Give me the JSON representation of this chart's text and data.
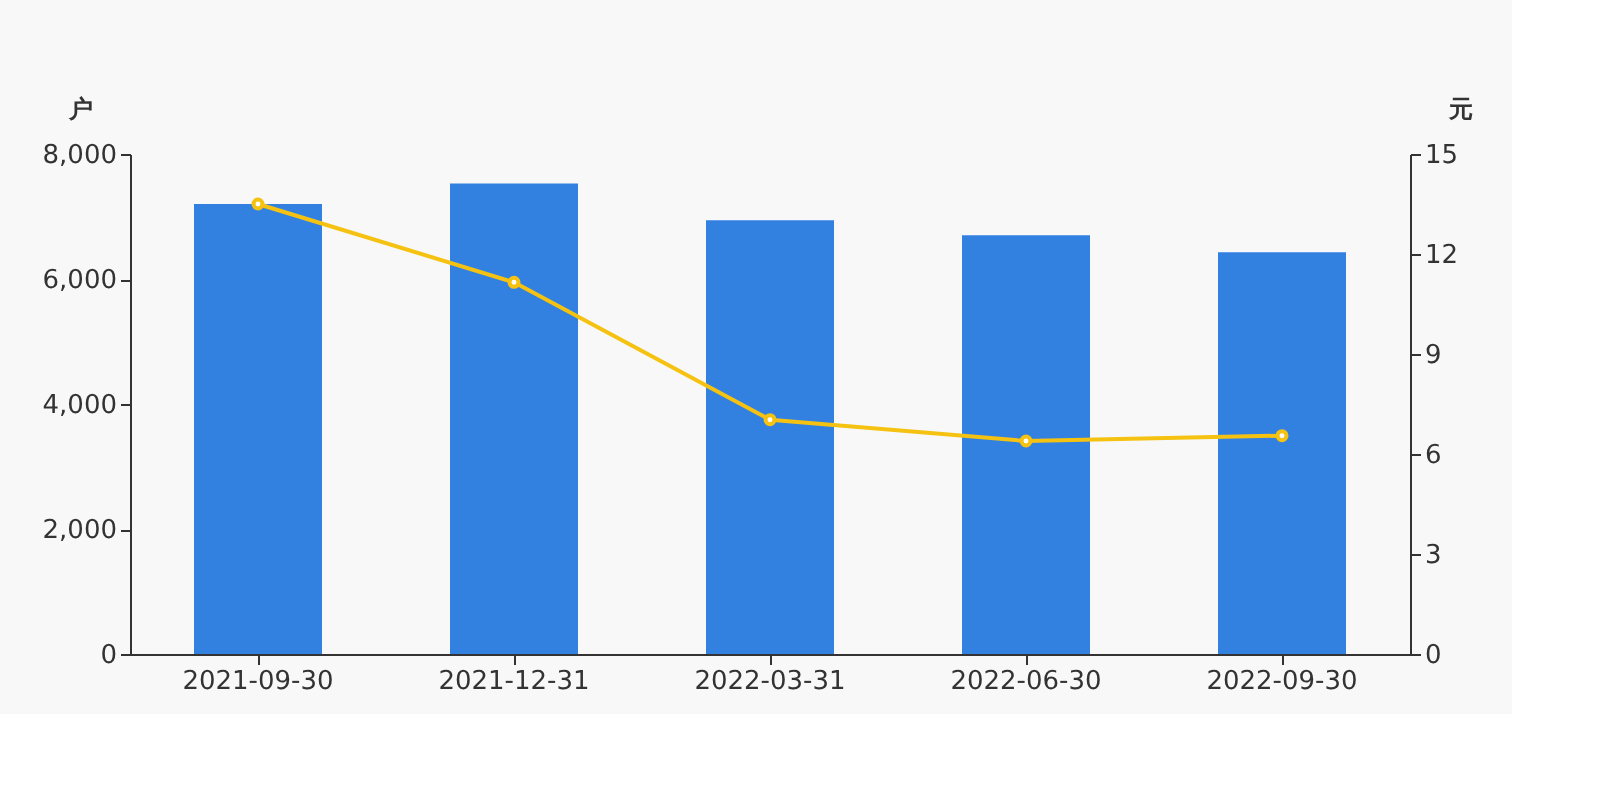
{
  "chart_data": {
    "type": "bar",
    "categories": [
      "2021-09-30",
      "2021-12-31",
      "2022-03-31",
      "2022-06-30",
      "2022-09-30"
    ],
    "series": [
      {
        "color": "#3281e0",
        "values": [
          7200,
          7530,
          6940,
          6700,
          6430
        ]
      },
      {
        "type": "line",
        "axis": "y2",
        "color": "#f5c211",
        "values": [
          13.5,
          11.15,
          7.03,
          6.39,
          6.55
        ]
      }
    ],
    "ylabel": "户",
    "y2label": "元",
    "ylim": [
      0,
      8000
    ],
    "yticks": [
      0,
      {
        "value": 2000,
        "label": "2,000"
      },
      {
        "value": 4000,
        "label": "4,000"
      },
      {
        "value": 6000,
        "label": "6,000"
      },
      {
        "value": 8000,
        "label": "8,000"
      }
    ],
    "y2lim": [
      0,
      15
    ],
    "y2ticks": [
      0,
      3,
      6,
      9,
      12,
      15
    ],
    "grid": false,
    "marker": "circle",
    "line_style": "solid"
  }
}
